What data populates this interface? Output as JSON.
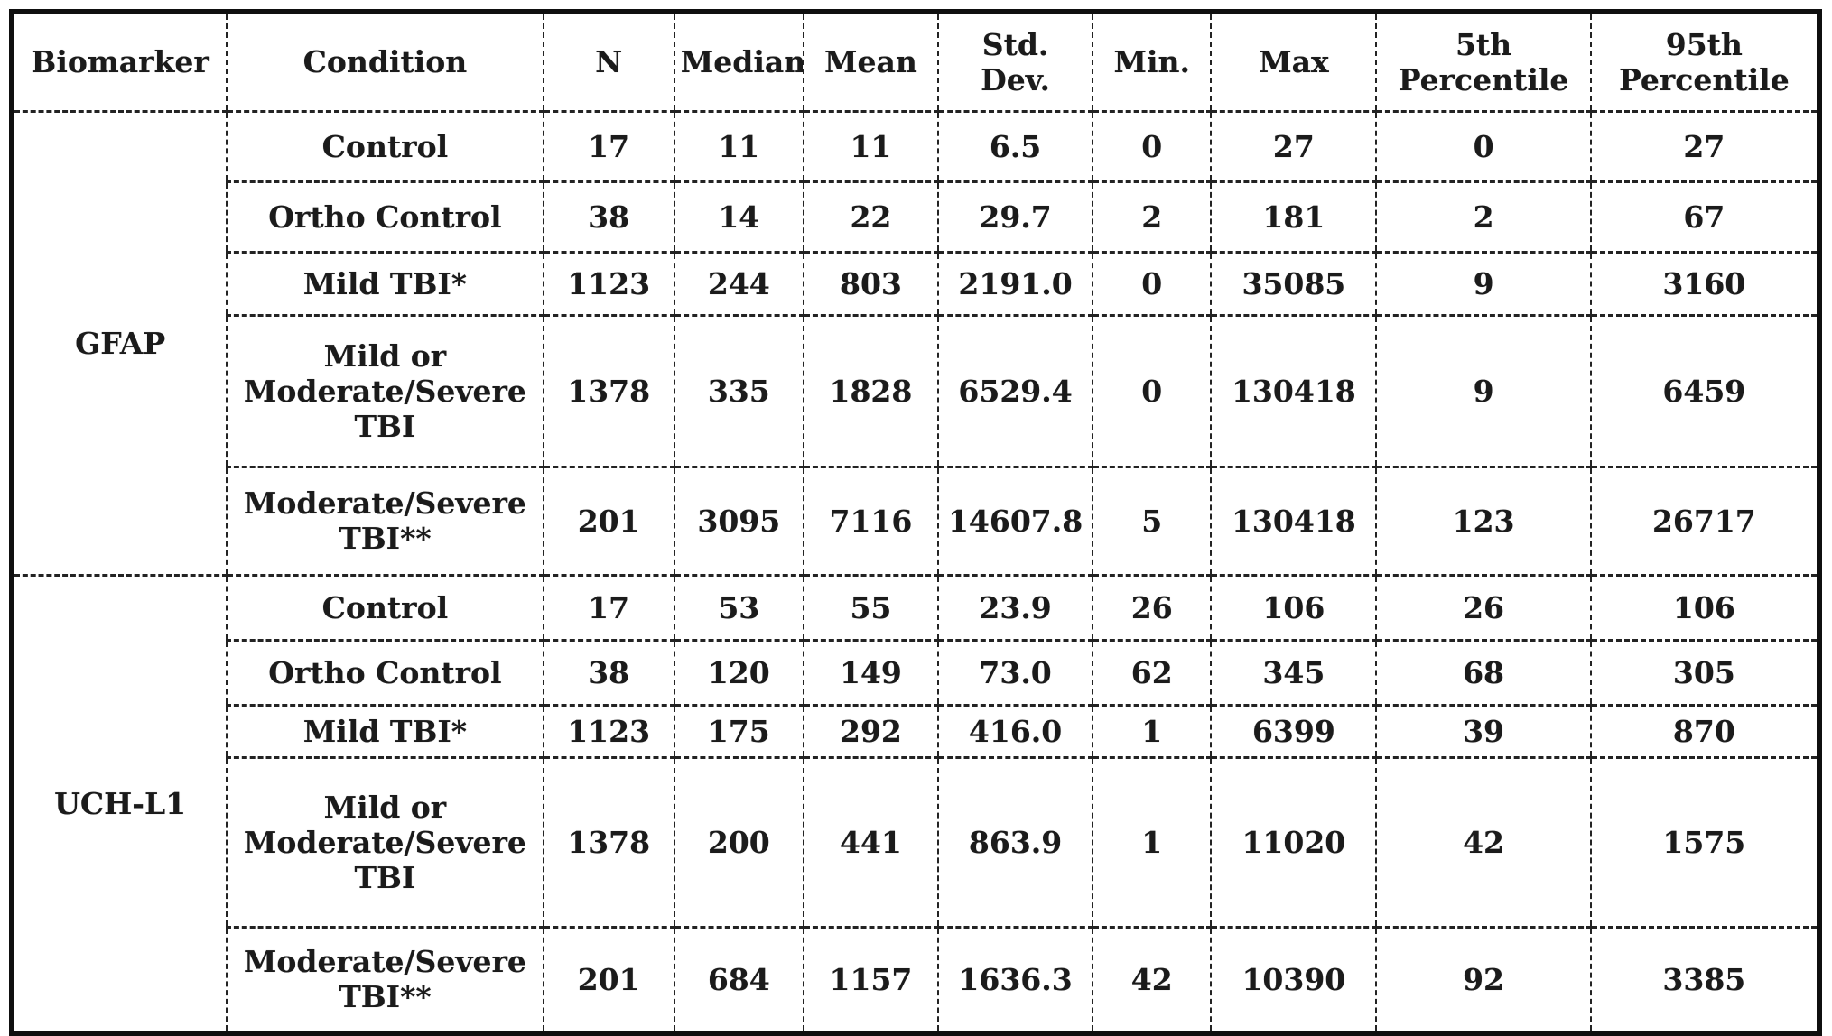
{
  "table": {
    "columns": [
      "Biomarker",
      "Condition",
      "N",
      "Median",
      "Mean",
      "Std.\nDev.",
      "Min.",
      "Max",
      "5th\nPercentile",
      "95th\nPercentile"
    ],
    "sections": [
      {
        "biomarker": "GFAP",
        "rows": [
          {
            "condition": "Control",
            "values": [
              "17",
              "11",
              "11",
              "6.5",
              "0",
              "27",
              "0",
              "27"
            ]
          },
          {
            "condition": "Ortho Control",
            "values": [
              "38",
              "14",
              "22",
              "29.7",
              "2",
              "181",
              "2",
              "67"
            ]
          },
          {
            "condition": "Mild TBI*",
            "values": [
              "1123",
              "244",
              "803",
              "2191.0",
              "0",
              "35085",
              "9",
              "3160"
            ]
          },
          {
            "condition": "Mild or\nModerate/Severe\nTBI",
            "values": [
              "1378",
              "335",
              "1828",
              "6529.4",
              "0",
              "130418",
              "9",
              "6459"
            ]
          },
          {
            "condition": "Moderate/Severe\nTBI**",
            "values": [
              "201",
              "3095",
              "7116",
              "14607.8",
              "5",
              "130418",
              "123",
              "26717"
            ]
          }
        ]
      },
      {
        "biomarker": "UCH-L1",
        "rows": [
          {
            "condition": "Control",
            "values": [
              "17",
              "53",
              "55",
              "23.9",
              "26",
              "106",
              "26",
              "106"
            ]
          },
          {
            "condition": "Ortho Control",
            "values": [
              "38",
              "120",
              "149",
              "73.0",
              "62",
              "345",
              "68",
              "305"
            ]
          },
          {
            "condition": "Mild TBI*",
            "values": [
              "1123",
              "175",
              "292",
              "416.0",
              "1",
              "6399",
              "39",
              "870"
            ]
          },
          {
            "condition": "Mild or\nModerate/Severe\nTBI",
            "values": [
              "1378",
              "200",
              "441",
              "863.9",
              "1",
              "11020",
              "42",
              "1575"
            ]
          },
          {
            "condition": "Moderate/Severe\nTBI**",
            "values": [
              "201",
              "684",
              "1157",
              "1636.3",
              "42",
              "10390",
              "92",
              "3385"
            ]
          }
        ]
      }
    ]
  }
}
